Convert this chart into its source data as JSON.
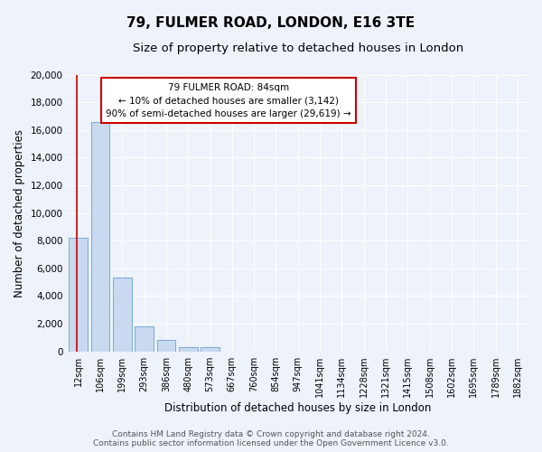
{
  "title": "79, FULMER ROAD, LONDON, E16 3TE",
  "subtitle": "Size of property relative to detached houses in London",
  "xlabel": "Distribution of detached houses by size in London",
  "ylabel": "Number of detached properties",
  "bar_labels": [
    "12sqm",
    "106sqm",
    "199sqm",
    "293sqm",
    "386sqm",
    "480sqm",
    "573sqm",
    "667sqm",
    "760sqm",
    "854sqm",
    "947sqm",
    "1041sqm",
    "1134sqm",
    "1228sqm",
    "1321sqm",
    "1415sqm",
    "1508sqm",
    "1602sqm",
    "1695sqm",
    "1789sqm",
    "1882sqm"
  ],
  "bar_values": [
    8200,
    16600,
    5300,
    1800,
    800,
    300,
    300,
    0,
    0,
    0,
    0,
    0,
    0,
    0,
    0,
    0,
    0,
    0,
    0,
    0,
    0
  ],
  "bar_color": "#c8d9f0",
  "bar_edge_color": "#7aaad4",
  "ylim": [
    0,
    20000
  ],
  "yticks": [
    0,
    2000,
    4000,
    6000,
    8000,
    10000,
    12000,
    14000,
    16000,
    18000,
    20000
  ],
  "red_line_x": 0.5,
  "annotation_box_text": "79 FULMER ROAD: 84sqm\n← 10% of detached houses are smaller (3,142)\n90% of semi-detached houses are larger (29,619) →",
  "footer_line1": "Contains HM Land Registry data © Crown copyright and database right 2024.",
  "footer_line2": "Contains public sector information licensed under the Open Government Licence v3.0.",
  "bg_color": "#edf2fb",
  "plot_bg_color": "#edf2fb",
  "grid_color": "#ffffff",
  "title_fontsize": 11,
  "subtitle_fontsize": 9.5,
  "axis_label_fontsize": 8.5,
  "tick_fontsize": 7.5,
  "footer_fontsize": 6.5
}
